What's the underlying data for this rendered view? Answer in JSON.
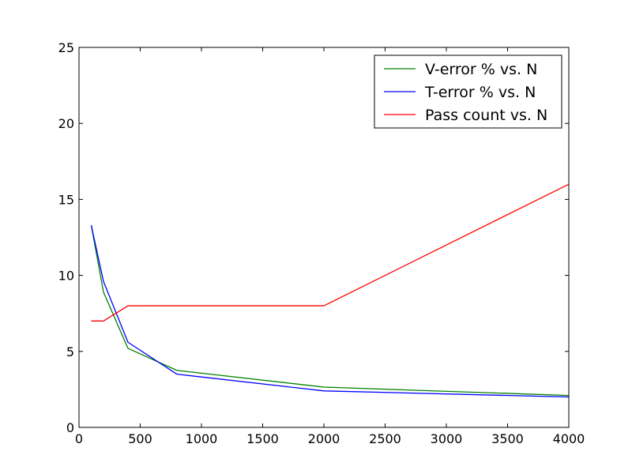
{
  "chart_data": {
    "type": "line",
    "title": "",
    "xlabel": "",
    "ylabel": "",
    "xlim": [
      0,
      4000
    ],
    "ylim": [
      0,
      25
    ],
    "x_ticks": [
      0,
      500,
      1000,
      1500,
      2000,
      2500,
      3000,
      3500,
      4000
    ],
    "x_tick_labels": [
      "0",
      "500",
      "1000",
      "1500",
      "2000",
      "2500",
      "3000",
      "3500",
      "4000"
    ],
    "y_ticks": [
      0,
      5,
      10,
      15,
      20,
      25
    ],
    "y_tick_labels": [
      "0",
      "5",
      "10",
      "15",
      "20",
      "25"
    ],
    "grid": false,
    "legend_position": "top-right",
    "series": [
      {
        "name": "V-error % vs. N",
        "color": "#008000",
        "x": [
          100,
          200,
          400,
          800,
          2000,
          4000
        ],
        "y": [
          13.3,
          8.9,
          5.2,
          3.75,
          2.65,
          2.1
        ]
      },
      {
        "name": "T-error % vs. N",
        "color": "#0000ff",
        "x": [
          100,
          200,
          400,
          800,
          2000,
          4000
        ],
        "y": [
          13.3,
          9.6,
          5.6,
          3.5,
          2.4,
          2.0
        ]
      },
      {
        "name": "Pass count vs. N",
        "color": "#ff0000",
        "x": [
          100,
          200,
          400,
          800,
          2000,
          4000
        ],
        "y": [
          7,
          7,
          8,
          8,
          8,
          16
        ]
      }
    ]
  }
}
